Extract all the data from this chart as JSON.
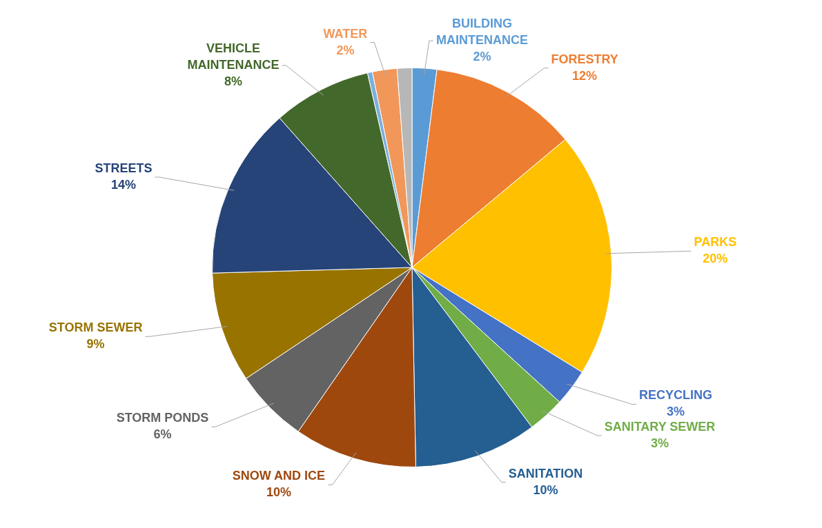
{
  "chart_data": {
    "type": "pie",
    "categories": [
      "BUILDING MAINTENANCE",
      "FORESTRY",
      "PARKS",
      "RECYCLING",
      "SANITARY SEWER",
      "SANITATION",
      "SNOW AND ICE",
      "STORM PONDS",
      "STORM SEWER",
      "STREETS",
      "VEHICLE MAINTENANCE",
      null,
      "WATER",
      null
    ],
    "values": [
      2,
      12,
      20,
      3,
      3,
      10,
      10,
      6,
      9,
      14,
      8,
      0.4,
      2,
      1.2
    ],
    "value_labels": [
      "2%",
      "12%",
      "20%",
      "3%",
      "3%",
      "10%",
      "10%",
      "6%",
      "9%",
      "14%",
      "8%",
      null,
      "2%",
      null
    ],
    "colors": [
      "#5b9bd5",
      "#ed7d31",
      "#ffc000",
      "#4472c4",
      "#70ad47",
      "#255e91",
      "#9e480e",
      "#636363",
      "#997300",
      "#264478",
      "#43682b",
      "#7cafdd",
      "#f1975a",
      "#b7b7b7"
    ],
    "legend": false
  }
}
